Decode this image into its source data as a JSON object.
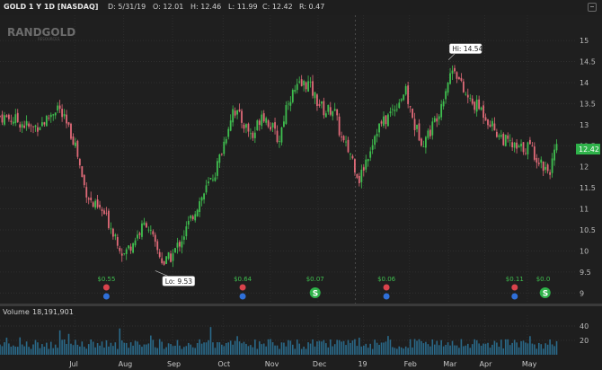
{
  "header": {
    "symbol": "GOLD 1 Y 1D [NASDAQ]",
    "date": "D: 5/31/19",
    "open": "O: 12.01",
    "high": "H: 12.46",
    "low": "L: 11.99",
    "close": "C: 12.42",
    "range": "R: 0.47"
  },
  "watermark": {
    "name": "RANDGOLD",
    "sub": "RESOURCES"
  },
  "volume_panel": {
    "label": "Volume",
    "value": "18,191,901"
  },
  "chart_data": {
    "type": "candlestick",
    "title": "GOLD 1 Y 1D [NASDAQ]",
    "ylim": [
      8.75,
      15.6
    ],
    "yticks": [
      "9",
      "9.5",
      "10",
      "10.5",
      "11",
      "11.5",
      "12",
      "12.5",
      "13",
      "13.5",
      "14",
      "14.5",
      "15"
    ],
    "months": [
      {
        "label": "Jul",
        "x": 0.13
      },
      {
        "label": "Aug",
        "x": 0.215
      },
      {
        "label": "Sep",
        "x": 0.3
      },
      {
        "label": "Oct",
        "x": 0.388
      },
      {
        "label": "Nov",
        "x": 0.47
      },
      {
        "label": "Dec",
        "x": 0.553
      },
      {
        "label": "19",
        "x": 0.632
      },
      {
        "label": "Feb",
        "x": 0.712
      },
      {
        "label": "Mar",
        "x": 0.78
      },
      {
        "label": "Apr",
        "x": 0.843
      },
      {
        "label": "May",
        "x": 0.917
      }
    ],
    "close_path": [
      [
        0.0,
        13.2
      ],
      [
        0.03,
        13.1
      ],
      [
        0.055,
        12.9
      ],
      [
        0.08,
        13.1
      ],
      [
        0.1,
        13.45
      ],
      [
        0.115,
        13.0
      ],
      [
        0.13,
        12.6
      ],
      [
        0.145,
        11.6
      ],
      [
        0.16,
        11.1
      ],
      [
        0.18,
        10.9
      ],
      [
        0.2,
        10.4
      ],
      [
        0.215,
        9.9
      ],
      [
        0.235,
        10.3
      ],
      [
        0.255,
        10.7
      ],
      [
        0.27,
        10.1
      ],
      [
        0.285,
        9.7
      ],
      [
        0.3,
        9.9
      ],
      [
        0.32,
        10.4
      ],
      [
        0.34,
        11.0
      ],
      [
        0.36,
        11.5
      ],
      [
        0.375,
        11.9
      ],
      [
        0.39,
        12.6
      ],
      [
        0.405,
        13.4
      ],
      [
        0.42,
        13.1
      ],
      [
        0.44,
        12.7
      ],
      [
        0.455,
        13.3
      ],
      [
        0.47,
        13.0
      ],
      [
        0.485,
        12.6
      ],
      [
        0.5,
        13.6
      ],
      [
        0.52,
        13.9
      ],
      [
        0.535,
        14.0
      ],
      [
        0.55,
        13.6
      ],
      [
        0.565,
        13.3
      ],
      [
        0.58,
        13.4
      ],
      [
        0.595,
        12.6
      ],
      [
        0.61,
        12.3
      ],
      [
        0.625,
        11.7
      ],
      [
        0.64,
        12.3
      ],
      [
        0.655,
        12.9
      ],
      [
        0.67,
        13.1
      ],
      [
        0.69,
        13.5
      ],
      [
        0.705,
        13.8
      ],
      [
        0.72,
        13.0
      ],
      [
        0.735,
        12.6
      ],
      [
        0.75,
        12.9
      ],
      [
        0.765,
        13.4
      ],
      [
        0.78,
        14.1
      ],
      [
        0.79,
        14.4
      ],
      [
        0.805,
        13.8
      ],
      [
        0.82,
        13.5
      ],
      [
        0.835,
        13.4
      ],
      [
        0.85,
        13.1
      ],
      [
        0.865,
        12.8
      ],
      [
        0.88,
        12.6
      ],
      [
        0.9,
        12.4
      ],
      [
        0.92,
        12.5
      ],
      [
        0.94,
        12.1
      ],
      [
        0.955,
        11.9
      ],
      [
        0.968,
        12.42
      ]
    ],
    "annotations": [
      {
        "label": "Hi: 14.54",
        "x": 0.78,
        "value": 14.54
      },
      {
        "label": "Lo: 9.53",
        "x": 0.27,
        "value": 9.53
      }
    ],
    "last_price": "12.42",
    "dividends": [
      {
        "label": "$0.55",
        "x": 0.185
      },
      {
        "label": "$0.64",
        "x": 0.422
      },
      {
        "label": "$0.07",
        "x": 0.548
      },
      {
        "label": "$0.06",
        "x": 0.672
      },
      {
        "label": "$0.11",
        "x": 0.895
      },
      {
        "label": "$0.0",
        "x": 0.948
      }
    ],
    "volume": {
      "ylim": [
        0,
        50
      ],
      "yticks": [
        "20",
        "40"
      ]
    }
  }
}
